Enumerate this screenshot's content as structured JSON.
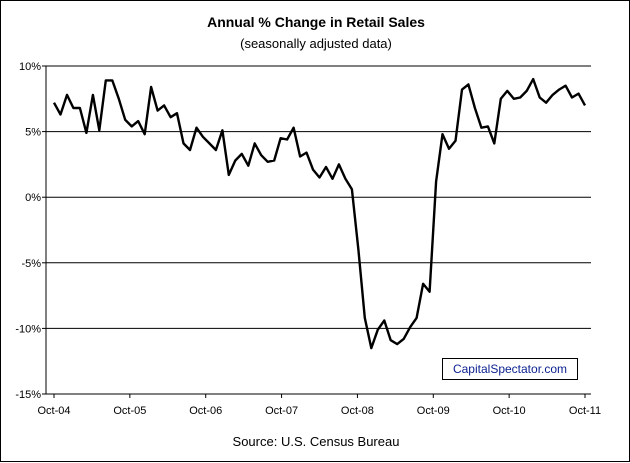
{
  "chart_data": {
    "type": "line",
    "title": "Annual %  Change in Retail Sales",
    "subtitle": "(seasonally adjusted data)",
    "source": "Source: U.S. Census Bureau",
    "watermark": "CapitalSpectator.com",
    "ylim": [
      -15,
      10
    ],
    "y_ticks": [
      10,
      5,
      0,
      -5,
      -10,
      -15
    ],
    "y_tick_labels": [
      "10%",
      "5%",
      "0%",
      "-5%",
      "-10%",
      "-15%"
    ],
    "x_tick_labels": [
      "Oct-04",
      "Oct-05",
      "Oct-06",
      "Oct-07",
      "Oct-08",
      "Oct-09",
      "Oct-10",
      "Oct-11"
    ],
    "grid": "horizontal",
    "legend": "none",
    "line_color": "#000000",
    "series": [
      {
        "values": [
          7.2,
          6.3,
          7.8,
          6.8,
          6.8,
          4.9,
          7.8,
          5.1,
          8.9,
          8.9,
          7.5,
          5.9,
          5.4,
          5.8,
          4.8,
          8.4,
          6.6,
          7.0,
          6.1,
          6.4,
          4.1,
          3.6,
          5.3,
          4.6,
          4.1,
          3.6,
          5.1,
          1.7,
          2.8,
          3.3,
          2.4,
          4.1,
          3.2,
          2.7,
          2.8,
          4.5,
          4.4,
          5.3,
          3.1,
          3.4,
          2.1,
          1.5,
          2.3,
          1.4,
          2.5,
          1.4,
          0.6,
          -4.0,
          -9.2,
          -11.5,
          -10.1,
          -9.4,
          -10.9,
          -11.2,
          -10.8,
          -9.9,
          -9.2,
          -6.6,
          -7.2,
          1.2,
          4.8,
          3.7,
          4.3,
          8.2,
          8.6,
          6.8,
          5.3,
          5.4,
          4.1,
          7.5,
          8.1,
          7.5,
          7.6,
          8.1,
          9.0,
          7.6,
          7.2,
          7.8,
          8.2,
          8.5,
          7.6,
          7.9,
          7.0
        ]
      }
    ]
  }
}
